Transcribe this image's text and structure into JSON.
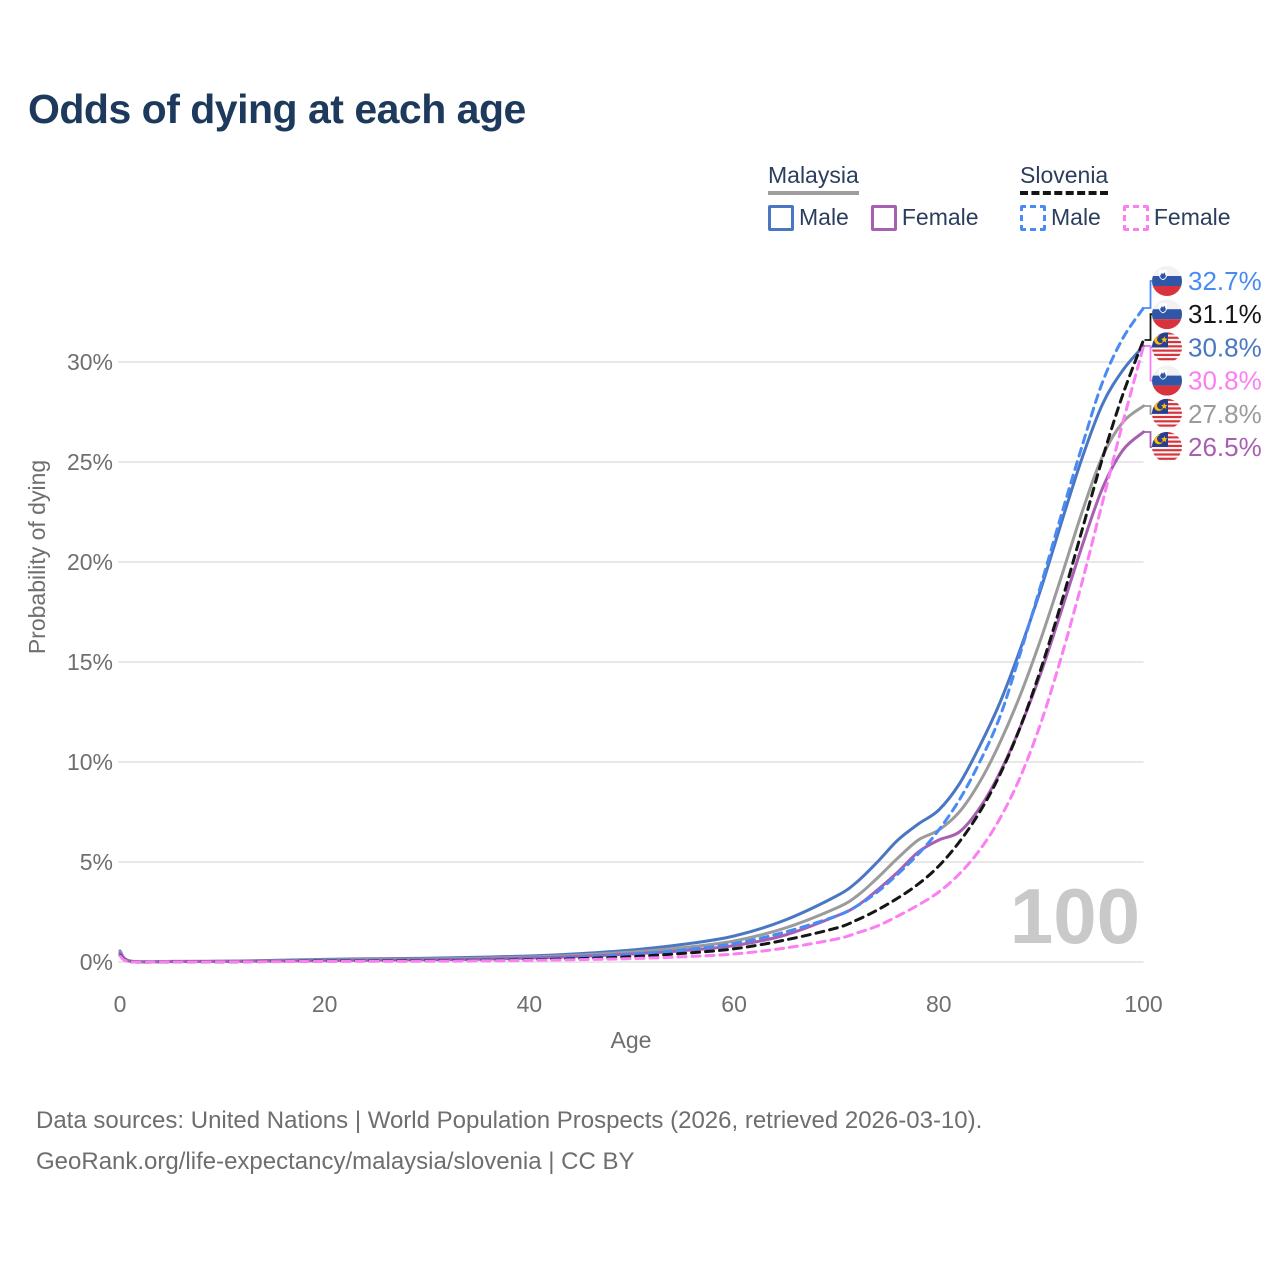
{
  "title": "Odds of dying at each age",
  "colors": {
    "title_text": "#1d3a5c",
    "legend_text": "#2c3e5d",
    "axis_text": "#6f6f6f",
    "gridline": "#e8e8e8",
    "watermark": "#c9c9c9",
    "footer_text": "#6e6e6e",
    "malaysia_underline": "#9e9e9e",
    "slovenia_underline": "#151515"
  },
  "legend": {
    "groups": [
      {
        "country": "Malaysia",
        "line_style": "solid",
        "items": [
          {
            "label": "Male",
            "color": "#4a77c4",
            "box_style": "solid"
          },
          {
            "label": "Female",
            "color": "#a75fb2",
            "box_style": "solid"
          }
        ]
      },
      {
        "country": "Slovenia",
        "line_style": "dashed",
        "items": [
          {
            "label": "Male",
            "color": "#4a8af5",
            "box_style": "dashed"
          },
          {
            "label": "Female",
            "color": "#fb7ef2",
            "box_style": "dashed"
          }
        ]
      }
    ]
  },
  "chart_data": {
    "type": "line",
    "title": "Odds of dying at each age",
    "xlabel": "Age",
    "ylabel": "Probability of dying",
    "xlim": [
      0,
      100
    ],
    "ylim": [
      0,
      34
    ],
    "grid": "horizontal",
    "legend_position": "top-right",
    "hover_age_label": "100",
    "xtick_labels": [
      "0",
      "20",
      "40",
      "60",
      "80",
      "100"
    ],
    "xtick_values": [
      0,
      20,
      40,
      60,
      80,
      100
    ],
    "ytick_labels": [
      "0%",
      "5%",
      "10%",
      "15%",
      "20%",
      "25%",
      "30%"
    ],
    "ytick_values": [
      0,
      5,
      10,
      15,
      20,
      25,
      30
    ],
    "x": [
      0,
      1,
      5,
      10,
      15,
      20,
      25,
      30,
      35,
      40,
      45,
      50,
      55,
      60,
      65,
      70,
      72,
      74,
      76,
      78,
      80,
      82,
      84,
      86,
      88,
      90,
      92,
      94,
      96,
      98,
      100
    ],
    "series": [
      {
        "name": "Malaysia Male",
        "country": "Malaysia",
        "sex": "Male",
        "line_style": "solid",
        "color": "#4a77c4",
        "end_value_pct": 30.8,
        "values": [
          0.55,
          0.05,
          0.03,
          0.04,
          0.08,
          0.13,
          0.16,
          0.19,
          0.24,
          0.3,
          0.42,
          0.6,
          0.88,
          1.3,
          2.1,
          3.3,
          4.0,
          5.0,
          6.1,
          6.9,
          7.6,
          8.9,
          10.8,
          13.0,
          15.7,
          18.7,
          22.0,
          25.2,
          27.9,
          29.6,
          30.8
        ]
      },
      {
        "name": "Malaysia Both sexes",
        "country": "Malaysia",
        "sex": "Both",
        "line_style": "solid",
        "color": "#9b9b9b",
        "end_value_pct": 27.8,
        "values": [
          0.5,
          0.045,
          0.025,
          0.035,
          0.06,
          0.1,
          0.13,
          0.15,
          0.19,
          0.25,
          0.35,
          0.5,
          0.72,
          1.05,
          1.7,
          2.7,
          3.3,
          4.2,
          5.2,
          6.1,
          6.6,
          7.5,
          9.0,
          11.0,
          13.4,
          16.2,
          19.3,
          22.5,
          25.3,
          27.0,
          27.8
        ]
      },
      {
        "name": "Malaysia Female",
        "country": "Malaysia",
        "sex": "Female",
        "line_style": "solid",
        "color": "#a75fb2",
        "end_value_pct": 26.5,
        "values": [
          0.44,
          0.04,
          0.02,
          0.03,
          0.05,
          0.07,
          0.09,
          0.11,
          0.14,
          0.2,
          0.28,
          0.4,
          0.57,
          0.82,
          1.35,
          2.3,
          2.8,
          3.6,
          4.5,
          5.5,
          6.1,
          6.5,
          7.7,
          9.5,
          11.8,
          14.5,
          17.6,
          20.8,
          23.7,
          25.6,
          26.5
        ]
      },
      {
        "name": "Slovenia Male",
        "country": "Slovenia",
        "sex": "Male",
        "line_style": "dashed",
        "color": "#4a8af5",
        "end_value_pct": 32.7,
        "values": [
          0.35,
          0.02,
          0.01,
          0.01,
          0.03,
          0.06,
          0.08,
          0.09,
          0.11,
          0.15,
          0.24,
          0.38,
          0.6,
          0.92,
          1.5,
          2.3,
          2.8,
          3.5,
          4.4,
          5.4,
          6.6,
          8.1,
          10.0,
          12.3,
          15.5,
          18.9,
          22.4,
          25.8,
          29.0,
          31.2,
          32.7
        ]
      },
      {
        "name": "Slovenia Both sexes",
        "country": "Slovenia",
        "sex": "Both",
        "line_style": "dashed",
        "color": "#161616",
        "end_value_pct": 31.1,
        "values": [
          0.33,
          0.02,
          0.01,
          0.01,
          0.025,
          0.045,
          0.06,
          0.07,
          0.085,
          0.11,
          0.17,
          0.27,
          0.43,
          0.66,
          1.1,
          1.7,
          2.1,
          2.6,
          3.2,
          3.9,
          4.8,
          6.0,
          7.5,
          9.4,
          11.8,
          14.7,
          18.0,
          21.6,
          25.2,
          28.4,
          31.1
        ]
      },
      {
        "name": "Slovenia Female",
        "country": "Slovenia",
        "sex": "Female",
        "line_style": "dashed",
        "color": "#fb7ef2",
        "end_value_pct": 30.8,
        "values": [
          0.3,
          0.015,
          0.008,
          0.01,
          0.02,
          0.03,
          0.035,
          0.045,
          0.06,
          0.08,
          0.12,
          0.17,
          0.26,
          0.4,
          0.7,
          1.15,
          1.45,
          1.8,
          2.3,
          2.85,
          3.5,
          4.4,
          5.6,
          7.2,
          9.3,
          12.0,
          15.3,
          19.0,
          23.0,
          27.0,
          30.8
        ]
      }
    ],
    "end_labels": [
      {
        "value": "32.7%",
        "country": "Slovenia",
        "flag": "slovenia-flag",
        "color": "#4a8af5",
        "series_index": 3
      },
      {
        "value": "31.1%",
        "country": "Slovenia",
        "flag": "slovenia-flag",
        "color": "#161616",
        "series_index": 4
      },
      {
        "value": "30.8%",
        "country": "Malaysia",
        "flag": "malaysia-flag",
        "color": "#4a77c4",
        "series_index": 0
      },
      {
        "value": "30.8%",
        "country": "Slovenia",
        "flag": "slovenia-flag",
        "color": "#fb7ef2",
        "series_index": 5
      },
      {
        "value": "27.8%",
        "country": "Malaysia",
        "flag": "malaysia-flag",
        "color": "#9b9b9b",
        "series_index": 1
      },
      {
        "value": "26.5%",
        "country": "Malaysia",
        "flag": "malaysia-flag",
        "color": "#a75fb2",
        "series_index": 2
      }
    ]
  },
  "footer": {
    "line1": "Data sources: United Nations | World Population Prospects (2026, retrieved 2026-03-10).",
    "line2": "GeoRank.org/life-expectancy/malaysia/slovenia | CC BY"
  }
}
